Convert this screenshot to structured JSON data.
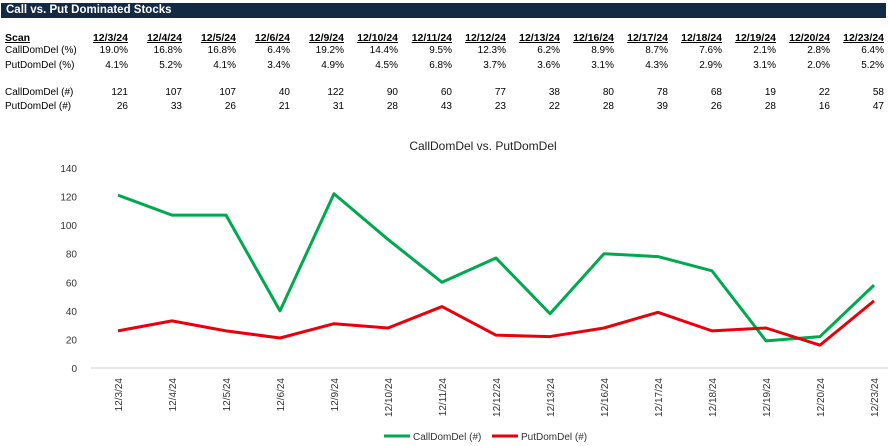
{
  "header": {
    "title": "Call vs. Put Dominated Stocks"
  },
  "table": {
    "scan_label": "Scan",
    "dates": [
      "12/3/24",
      "12/4/24",
      "12/5/24",
      "12/6/24",
      "12/9/24",
      "12/10/24",
      "12/11/24",
      "12/12/24",
      "12/13/24",
      "12/16/24",
      "12/17/24",
      "12/18/24",
      "12/19/24",
      "12/20/24",
      "12/23/24"
    ],
    "rows": [
      {
        "label": "CallDomDel (%)",
        "values": [
          "19.0%",
          "16.8%",
          "16.8%",
          "6.4%",
          "19.2%",
          "14.4%",
          "9.5%",
          "12.3%",
          "6.2%",
          "8.9%",
          "8.7%",
          "7.6%",
          "2.1%",
          "2.8%",
          "6.4%"
        ]
      },
      {
        "label": "PutDomDel (%)",
        "values": [
          "4.1%",
          "5.2%",
          "4.1%",
          "3.4%",
          "4.9%",
          "4.5%",
          "6.8%",
          "3.7%",
          "3.6%",
          "3.1%",
          "4.3%",
          "2.9%",
          "3.1%",
          "2.0%",
          "5.2%"
        ]
      },
      {
        "label": "CallDomDel (#)",
        "values": [
          "121",
          "107",
          "107",
          "40",
          "122",
          "90",
          "60",
          "77",
          "38",
          "80",
          "78",
          "68",
          "19",
          "22",
          "58"
        ]
      },
      {
        "label": "PutDomDel (#)",
        "values": [
          "26",
          "33",
          "26",
          "21",
          "31",
          "28",
          "43",
          "23",
          "22",
          "28",
          "39",
          "26",
          "28",
          "16",
          "47"
        ]
      }
    ]
  },
  "chart_data": {
    "type": "line",
    "title": "CallDomDel vs. PutDomDel",
    "categories": [
      "12/3/24",
      "12/4/24",
      "12/5/24",
      "12/6/24",
      "12/9/24",
      "12/10/24",
      "12/11/24",
      "12/12/24",
      "12/13/24",
      "12/16/24",
      "12/17/24",
      "12/18/24",
      "12/19/24",
      "12/20/24",
      "12/23/24"
    ],
    "series": [
      {
        "name": "CallDomDel (#)",
        "color": "#00a84f",
        "values": [
          121,
          107,
          107,
          40,
          122,
          90,
          60,
          77,
          38,
          80,
          78,
          68,
          19,
          22,
          58
        ]
      },
      {
        "name": "PutDomDel (#)",
        "color": "#e8000b",
        "values": [
          26,
          33,
          26,
          21,
          31,
          28,
          43,
          23,
          22,
          28,
          39,
          26,
          28,
          16,
          47
        ]
      }
    ],
    "yticks": [
      0,
      20,
      40,
      60,
      80,
      100,
      120,
      140
    ],
    "ylim": [
      0,
      140
    ],
    "grid": false,
    "legend": "bottom"
  }
}
